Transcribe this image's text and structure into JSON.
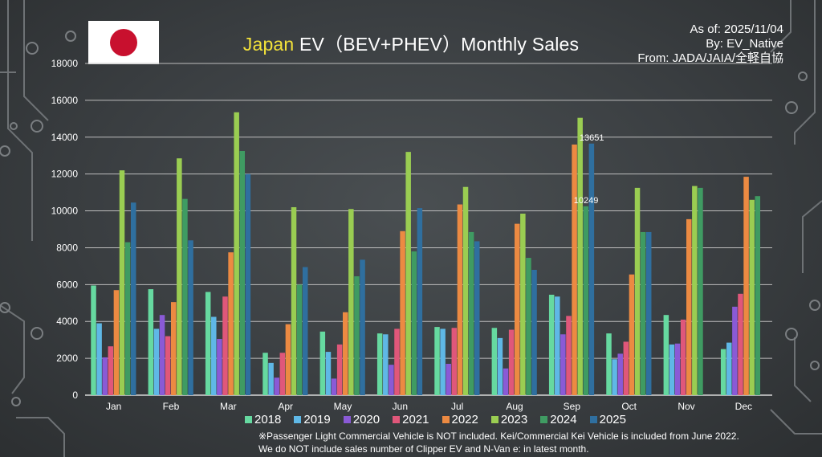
{
  "header": {
    "title_country": "Japan",
    "title_rest": " EV（BEV+PHEV）Monthly Sales",
    "as_of": "As of: 2025/11/04",
    "by": "By: EV_Native",
    "from": "From: JADA/JAIA/全軽自協"
  },
  "footnote": {
    "line1": "※Passenger Light Commercial Vehicle is NOT included. Kei/Commercial Kei Vehicle is included from June 2022.",
    "line2": "We do NOT include sales number of Clipper EV and N-Van e: in latest month."
  },
  "flag": {
    "name": "japan-flag-icon",
    "colors": {
      "field": "#ffffff",
      "sun": "#c8102e"
    }
  },
  "chart_data": {
    "type": "bar",
    "title": "Japan EV（BEV+PHEV）Monthly Sales",
    "categories": [
      "Jan",
      "Feb",
      "Mar",
      "Apr",
      "May",
      "Jun",
      "Jul",
      "Aug",
      "Sep",
      "Oct",
      "Nov",
      "Dec"
    ],
    "ylim": [
      0,
      18000
    ],
    "yticks": [
      0,
      2000,
      4000,
      6000,
      8000,
      10000,
      12000,
      14000,
      16000,
      18000
    ],
    "grid": true,
    "legend_position": "bottom",
    "series": [
      {
        "name": "2018",
        "color": "#66d9a0",
        "values": [
          5950,
          5750,
          5600,
          2300,
          3450,
          3350,
          3700,
          3650,
          5450,
          3350,
          4350,
          2500
        ]
      },
      {
        "name": "2019",
        "color": "#5fb8e6",
        "values": [
          3900,
          3600,
          4250,
          1750,
          2350,
          3300,
          3600,
          3100,
          5350,
          1950,
          2750,
          2850
        ]
      },
      {
        "name": "2020",
        "color": "#8a5ad6",
        "values": [
          2050,
          4350,
          3050,
          950,
          900,
          1650,
          1700,
          1450,
          3300,
          2250,
          2800,
          4800
        ]
      },
      {
        "name": "2021",
        "color": "#e0577a",
        "values": [
          2650,
          3200,
          5350,
          2300,
          2750,
          3600,
          3650,
          3550,
          4300,
          2900,
          4100,
          5500
        ]
      },
      {
        "name": "2022",
        "color": "#ec8a42",
        "values": [
          5700,
          5050,
          7750,
          3850,
          4500,
          8900,
          10350,
          9300,
          13600,
          6550,
          9550,
          11850
        ]
      },
      {
        "name": "2023",
        "color": "#9acd52",
        "values": [
          12200,
          12850,
          15350,
          10200,
          10100,
          13200,
          11300,
          9850,
          15050,
          11250,
          11350,
          10600
        ]
      },
      {
        "name": "2024",
        "color": "#3f9b62",
        "values": [
          8300,
          10650,
          13250,
          6000,
          6450,
          7800,
          8850,
          7450,
          10249,
          8850,
          11250,
          10800
        ]
      },
      {
        "name": "2025",
        "color": "#2f6f9f",
        "values": [
          10450,
          8400,
          12000,
          6950,
          7350,
          10150,
          8350,
          6800,
          13651,
          8850,
          null,
          null
        ]
      }
    ],
    "annotations": [
      {
        "text": "13651",
        "category": "Sep",
        "series": "2025",
        "value": 13651
      },
      {
        "text": "10249",
        "category": "Sep",
        "series": "2024",
        "value": 10249
      }
    ]
  }
}
